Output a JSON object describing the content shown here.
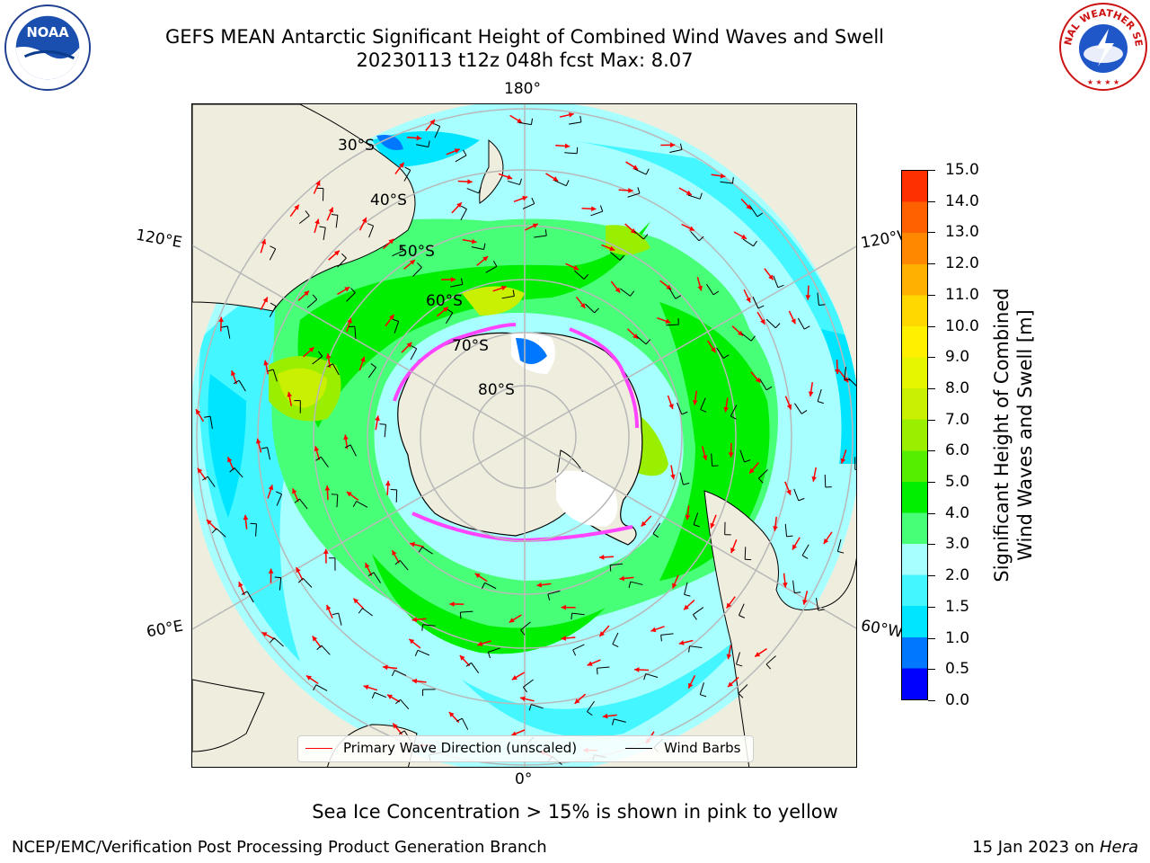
{
  "header": {
    "title_line1": "GEFS MEAN Antarctic Significant Height of Combined Wind Waves and Swell",
    "title_line2": "20230113 t12z 048h fcst   Max: 8.07"
  },
  "logos": {
    "left": "noaa-logo",
    "right": "national-weather-service-logo",
    "left_text": "NOAA",
    "right_text": "NATIONAL WEATHER SERVICE"
  },
  "map": {
    "projection": "south-polar-stereographic",
    "longitude_labels": {
      "top": "180°",
      "bottom": "0°",
      "upper_left": "120°E",
      "lower_left": "60°E",
      "upper_right": "120°W",
      "lower_right": "60°W"
    },
    "latitude_labels": [
      "30°S",
      "40°S",
      "50°S",
      "60°S",
      "70°S",
      "80°S"
    ],
    "legend": {
      "wave_direction": "Primary Wave Direction (unscaled)",
      "wind_barbs": "Wind Barbs"
    },
    "colors": {
      "land": "#efedde",
      "grid": "#b8b8b8",
      "wave_arrow": "#ff0000",
      "barb": "#000000",
      "sea_ice": "#ff44ff"
    }
  },
  "colorbar": {
    "title_line1": "Significant Height of Combined",
    "title_line2": "Wind Waves and Swell [m]",
    "ticks": [
      "15.0",
      "14.0",
      "13.0",
      "12.0",
      "11.0",
      "10.0",
      "9.0",
      "8.0",
      "7.0",
      "6.0",
      "5.0",
      "4.0",
      "3.0",
      "2.0",
      "1.5",
      "1.0",
      "0.5",
      "0.0"
    ],
    "colors_bottom_to_top": [
      "#0000ff",
      "#0077ff",
      "#00e5ff",
      "#44f6ff",
      "#a8ffff",
      "#48ff78",
      "#00ee00",
      "#55ee00",
      "#9aee00",
      "#c8f000",
      "#e6f500",
      "#fff000",
      "#ffd800",
      "#ffb000",
      "#ff8800",
      "#ff6000",
      "#ff3000"
    ]
  },
  "chart_data": {
    "type": "heatmap",
    "title": "GEFS MEAN Antarctic Significant Height of Combined Wind Waves and Swell",
    "subtitle": "20230113 t12z 048h fcst   Max: 8.07",
    "variable": "Significant Height of Combined Wind Waves and Swell [m]",
    "max_value": 8.07,
    "color_levels": [
      0.0,
      0.5,
      1.0,
      1.5,
      2.0,
      3.0,
      4.0,
      5.0,
      6.0,
      7.0,
      8.0,
      9.0,
      10.0,
      11.0,
      12.0,
      13.0,
      14.0,
      15.0
    ]
  },
  "caption": "Sea Ice Concentration > 15% is shown in pink to yellow",
  "footer": {
    "left": "NCEP/EMC/Verification Post Processing Product Generation Branch",
    "right_date": "15 Jan 2023 on ",
    "right_host": "Hera"
  }
}
